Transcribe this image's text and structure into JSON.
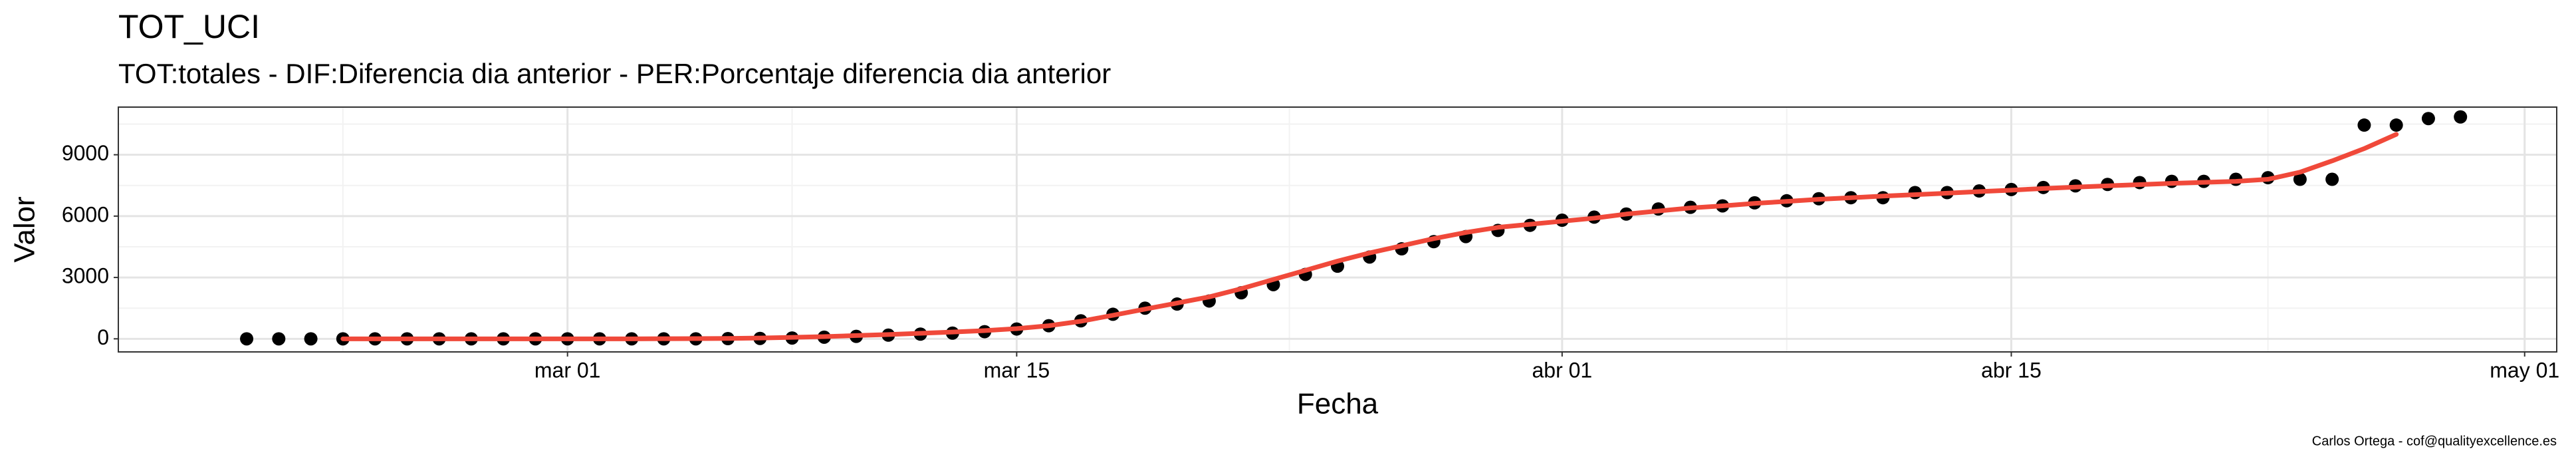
{
  "chart_data": {
    "type": "scatter",
    "title": "TOT_UCI",
    "subtitle": "TOT:totales - DIF:Diferencia dia anterior - PER:Porcentaje diferencia dia anterior",
    "x_label": "Fecha",
    "y_label": "Valor",
    "caption": "Carlos Ortega - cof@qualityexcellence.es",
    "x": [
      "02-20",
      "02-21",
      "02-22",
      "02-23",
      "02-24",
      "02-25",
      "02-26",
      "02-27",
      "02-28",
      "02-29",
      "03-01",
      "03-02",
      "03-03",
      "03-04",
      "03-05",
      "03-06",
      "03-07",
      "03-08",
      "03-09",
      "03-10",
      "03-11",
      "03-12",
      "03-13",
      "03-14",
      "03-15",
      "03-16",
      "03-17",
      "03-18",
      "03-19",
      "03-20",
      "03-21",
      "03-22",
      "03-23",
      "03-24",
      "03-25",
      "03-26",
      "03-27",
      "03-28",
      "03-29",
      "03-30",
      "03-31",
      "04-01",
      "04-02",
      "04-03",
      "04-04",
      "04-05",
      "04-06",
      "04-07",
      "04-08",
      "04-09",
      "04-10",
      "04-11",
      "04-12",
      "04-13",
      "04-14",
      "04-15",
      "04-16",
      "04-17",
      "04-18",
      "04-19",
      "04-20",
      "04-21",
      "04-22",
      "04-23",
      "04-24",
      "04-25",
      "04-26",
      "04-27",
      "04-28",
      "04-29"
    ],
    "series": [
      {
        "color": "#000000",
        "values": [
          0,
          0,
          0,
          0,
          0,
          0,
          0,
          0,
          0,
          0,
          0,
          0,
          0,
          0,
          0,
          10,
          20,
          40,
          80,
          120,
          180,
          230,
          280,
          350,
          480,
          640,
          880,
          1200,
          1500,
          1700,
          1850,
          2250,
          2650,
          3150,
          3550,
          4000,
          4400,
          4750,
          5000,
          5300,
          5550,
          5800,
          5950,
          6100,
          6350,
          6430,
          6500,
          6650,
          6750,
          6850,
          6900,
          6900,
          7150,
          7150,
          7230,
          7300,
          7400,
          7480,
          7550,
          7640,
          7700,
          7700,
          7800,
          7880,
          7800,
          7800,
          10450,
          10450,
          10770,
          10850
        ]
      },
      {
        "type": "line",
        "color": "#F0493A",
        "values": [
          null,
          null,
          null,
          0,
          0,
          0,
          0,
          0,
          0,
          0,
          0,
          0,
          0,
          5,
          10,
          20,
          40,
          70,
          110,
          160,
          210,
          270,
          330,
          400,
          500,
          640,
          860,
          1150,
          1450,
          1750,
          2050,
          2450,
          2900,
          3350,
          3800,
          4200,
          4550,
          4900,
          5200,
          5450,
          5600,
          5750,
          5900,
          6100,
          6250,
          6400,
          6500,
          6620,
          6720,
          6820,
          6900,
          6980,
          7050,
          7120,
          7200,
          7270,
          7350,
          7420,
          7480,
          7540,
          7600,
          7650,
          7700,
          7800,
          8150,
          8700,
          9300,
          10000,
          null,
          null
        ]
      }
    ],
    "xlim": [
      "02-16",
      "05-02"
    ],
    "xticks": [
      {
        "value": "03-01",
        "label": "mar 01"
      },
      {
        "value": "03-15",
        "label": "mar 15"
      },
      {
        "value": "04-01",
        "label": "abr 01"
      },
      {
        "value": "04-15",
        "label": "abr 15"
      },
      {
        "value": "05-01",
        "label": "may 01"
      }
    ],
    "ylim": [
      -640,
      11330
    ],
    "yticks": [
      0,
      3000,
      6000,
      9000
    ],
    "grid": true
  }
}
